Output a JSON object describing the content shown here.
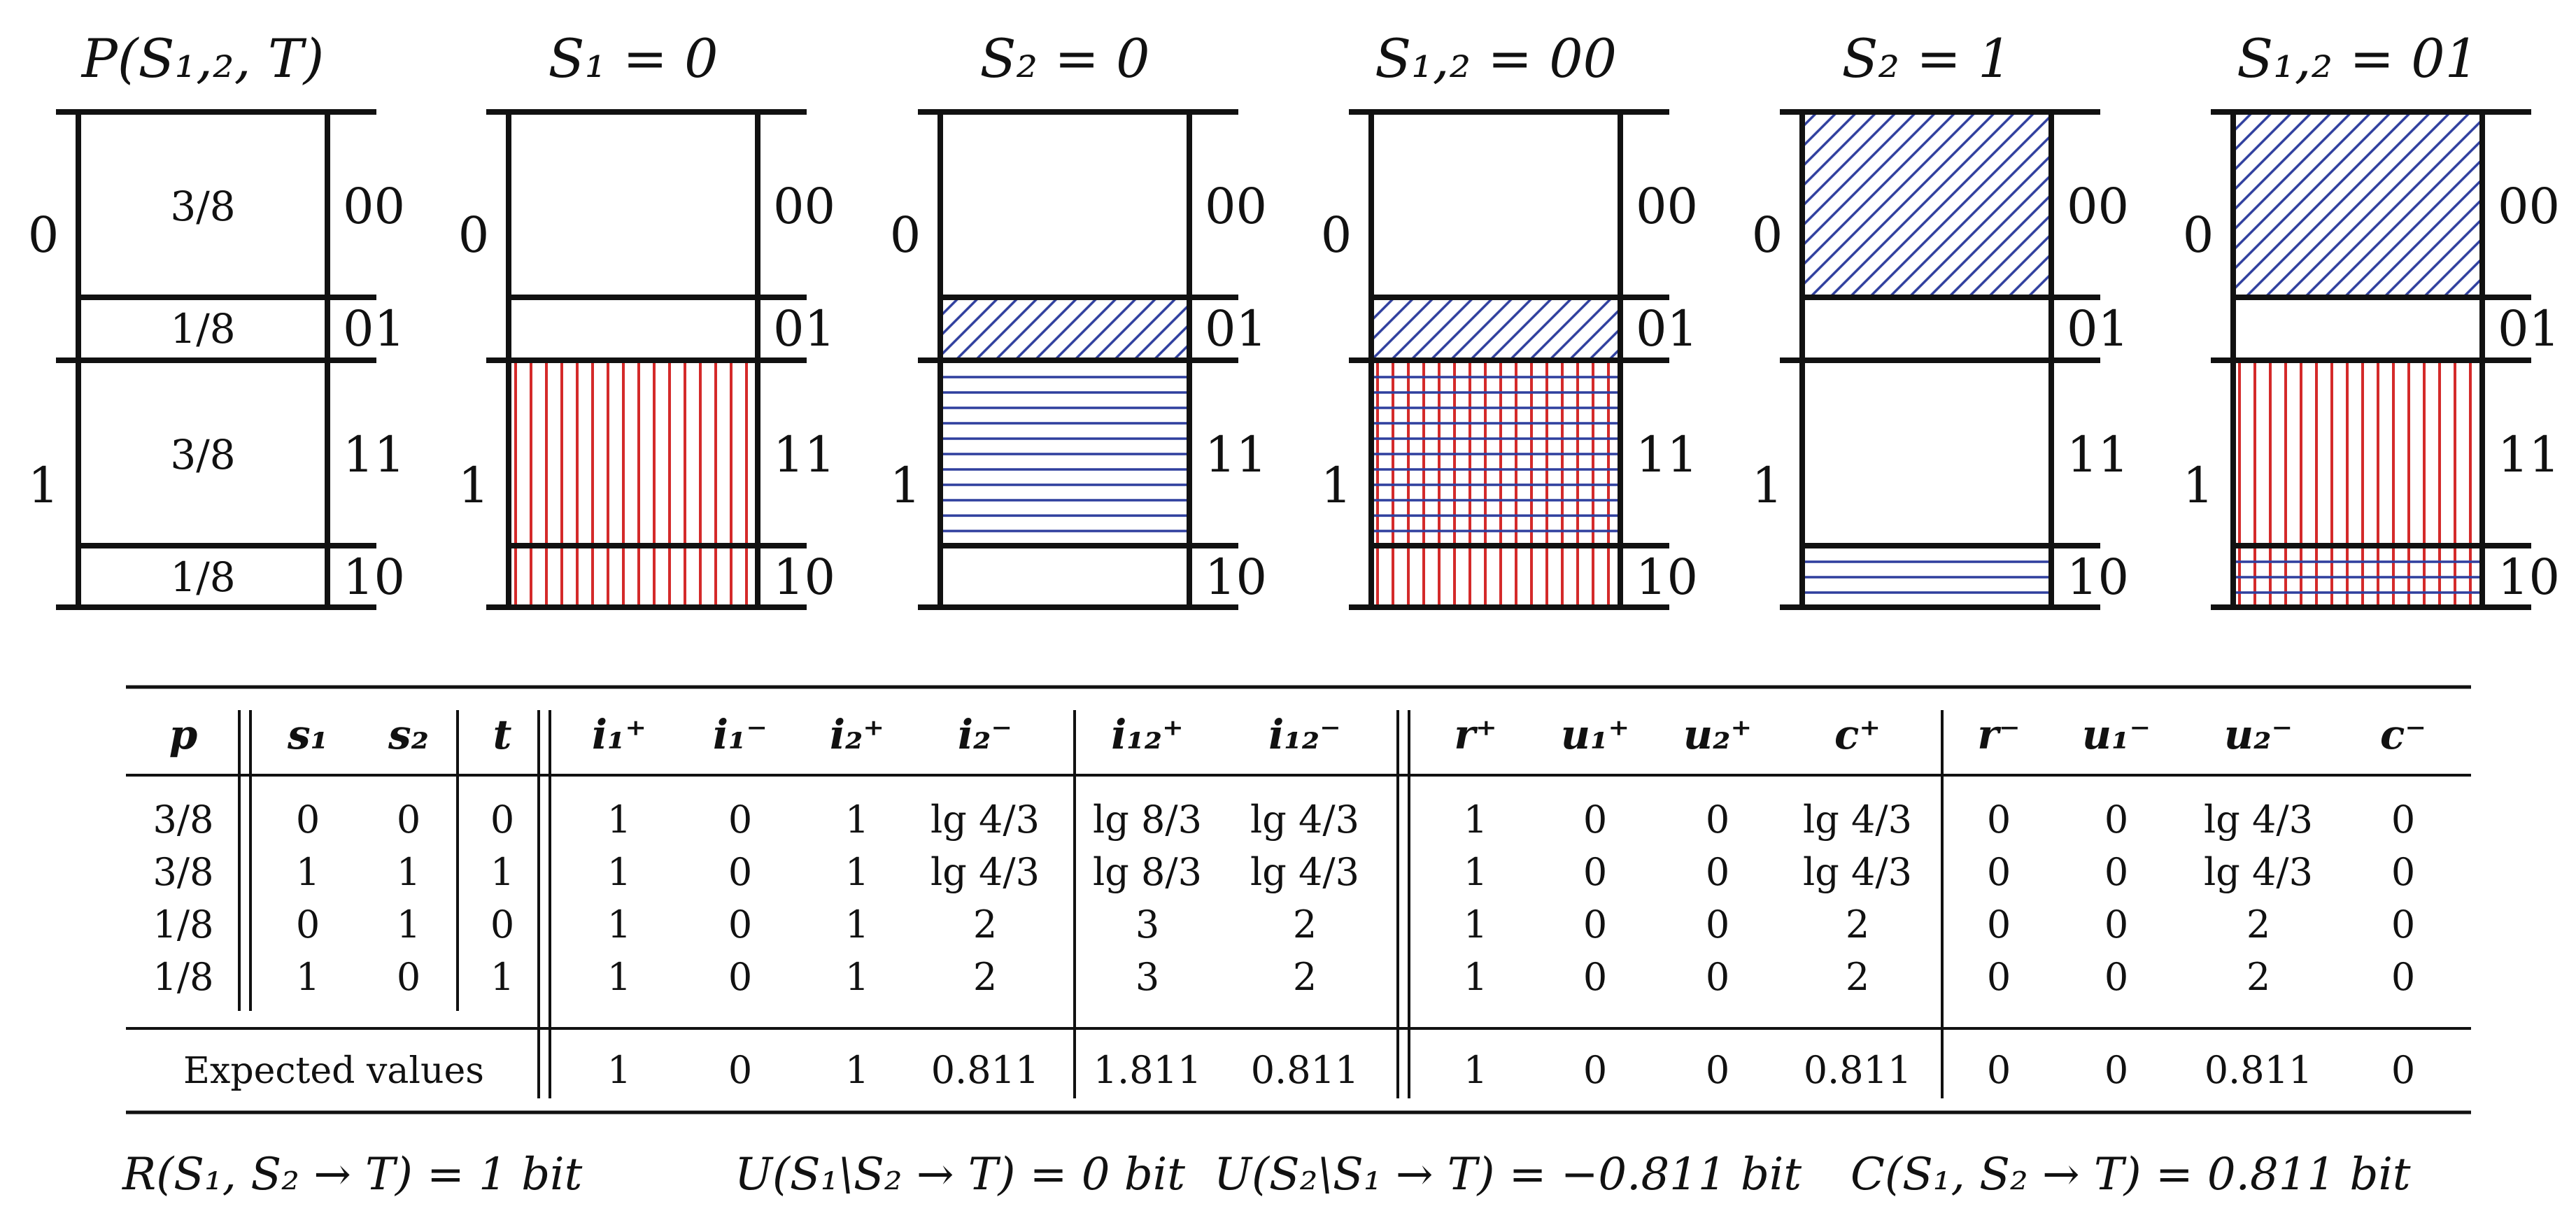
{
  "diagrams": [
    {
      "title": "P(S₁,₂, T)",
      "cells": [
        {
          "code": "00",
          "fraction": "3/8",
          "patterns": []
        },
        {
          "code": "01",
          "fraction": "1/8",
          "patterns": []
        },
        {
          "code": "11",
          "fraction": "3/8",
          "patterns": []
        },
        {
          "code": "10",
          "fraction": "1/8",
          "patterns": []
        }
      ]
    },
    {
      "title": "S₁ = 0",
      "cells": [
        {
          "code": "00",
          "fraction": "",
          "patterns": []
        },
        {
          "code": "01",
          "fraction": "",
          "patterns": []
        },
        {
          "code": "11",
          "fraction": "",
          "patterns": [
            "vertical-red"
          ]
        },
        {
          "code": "10",
          "fraction": "",
          "patterns": [
            "vertical-red"
          ]
        }
      ]
    },
    {
      "title": "S₂ = 0",
      "cells": [
        {
          "code": "00",
          "fraction": "",
          "patterns": []
        },
        {
          "code": "01",
          "fraction": "",
          "patterns": [
            "diagonal-blue"
          ]
        },
        {
          "code": "11",
          "fraction": "",
          "patterns": [
            "horizontal-blue"
          ]
        },
        {
          "code": "10",
          "fraction": "",
          "patterns": []
        }
      ]
    },
    {
      "title": "S₁,₂ = 00",
      "cells": [
        {
          "code": "00",
          "fraction": "",
          "patterns": []
        },
        {
          "code": "01",
          "fraction": "",
          "patterns": [
            "diagonal-blue"
          ]
        },
        {
          "code": "11",
          "fraction": "",
          "patterns": [
            "vertical-red",
            "horizontal-blue"
          ]
        },
        {
          "code": "10",
          "fraction": "",
          "patterns": [
            "vertical-red"
          ]
        }
      ]
    },
    {
      "title": "S₂ = 1",
      "cells": [
        {
          "code": "00",
          "fraction": "",
          "patterns": [
            "diagonal-blue"
          ]
        },
        {
          "code": "01",
          "fraction": "",
          "patterns": []
        },
        {
          "code": "11",
          "fraction": "",
          "patterns": []
        },
        {
          "code": "10",
          "fraction": "",
          "patterns": [
            "horizontal-blue"
          ]
        }
      ]
    },
    {
      "title": "S₁,₂ = 01",
      "cells": [
        {
          "code": "00",
          "fraction": "",
          "patterns": [
            "diagonal-blue"
          ]
        },
        {
          "code": "01",
          "fraction": "",
          "patterns": []
        },
        {
          "code": "11",
          "fraction": "",
          "patterns": [
            "vertical-red"
          ]
        },
        {
          "code": "10",
          "fraction": "",
          "patterns": [
            "vertical-red",
            "horizontal-blue"
          ]
        }
      ]
    }
  ],
  "t_labels": [
    "0",
    "1"
  ],
  "colors": {
    "red": "#d42a2a",
    "blue": "#2f3f9e",
    "ink": "#111111"
  },
  "table": {
    "headers": [
      "p",
      "s₁",
      "s₂",
      "t",
      "i₁⁺",
      "i₁⁻",
      "i₂⁺",
      "i₂⁻",
      "i₁₂⁺",
      "i₁₂⁻",
      "r⁺",
      "u₁⁺",
      "u₂⁺",
      "c⁺",
      "r⁻",
      "u₁⁻",
      "u₂⁻",
      "c⁻"
    ],
    "rows": [
      [
        "3/8",
        "0",
        "0",
        "0",
        "1",
        "0",
        "1",
        "lg 4/3",
        "lg 8/3",
        "lg 4/3",
        "1",
        "0",
        "0",
        "lg 4/3",
        "0",
        "0",
        "lg 4/3",
        "0"
      ],
      [
        "3/8",
        "1",
        "1",
        "1",
        "1",
        "0",
        "1",
        "lg 4/3",
        "lg 8/3",
        "lg 4/3",
        "1",
        "0",
        "0",
        "lg 4/3",
        "0",
        "0",
        "lg 4/3",
        "0"
      ],
      [
        "1/8",
        "0",
        "1",
        "0",
        "1",
        "0",
        "1",
        "2",
        "3",
        "2",
        "1",
        "0",
        "0",
        "2",
        "0",
        "0",
        "2",
        "0"
      ],
      [
        "1/8",
        "1",
        "0",
        "1",
        "1",
        "0",
        "1",
        "2",
        "3",
        "2",
        "1",
        "0",
        "0",
        "2",
        "0",
        "0",
        "2",
        "0"
      ]
    ],
    "expected_label": "Expected values",
    "expected": [
      "1",
      "0",
      "1",
      "0.811",
      "1.811",
      "0.811",
      "1",
      "0",
      "0",
      "0.811",
      "0",
      "0",
      "0.811",
      "0"
    ]
  },
  "formulas": [
    "R(S₁, S₂ → T) = 1 bit",
    "U(S₁\\S₂ → T) = 0 bit",
    "U(S₂\\S₁ → T) = −0.811 bit",
    "C(S₁, S₂ → T) = 0.811 bit"
  ]
}
